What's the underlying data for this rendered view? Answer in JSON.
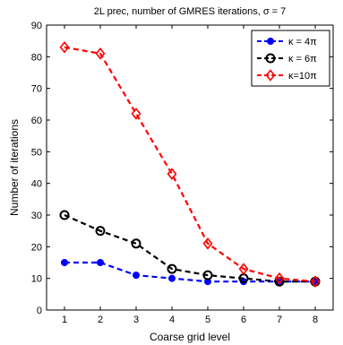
{
  "chart_data": {
    "type": "line",
    "title": "2L prec, number of GMRES iterations, σ = 7",
    "xlabel": "Coarse grid level",
    "ylabel": "Number of iterations",
    "x": [
      1,
      2,
      3,
      4,
      5,
      6,
      7,
      8
    ],
    "xlim": [
      0.5,
      8.5
    ],
    "ylim": [
      0,
      90
    ],
    "xticks": [
      "1",
      "2",
      "3",
      "4",
      "5",
      "6",
      "7",
      "8"
    ],
    "yticks": [
      "0",
      "10",
      "20",
      "30",
      "40",
      "50",
      "60",
      "70",
      "80",
      "90"
    ],
    "grid": false,
    "legend_position": "top-right",
    "series": [
      {
        "name": "κ = 4π",
        "color": "#0000ff",
        "marker": "filled-circle",
        "values": [
          15,
          15,
          11,
          10,
          9,
          9,
          9,
          9
        ]
      },
      {
        "name": "κ = 6π",
        "color": "#000000",
        "marker": "open-circle",
        "values": [
          30,
          25,
          21,
          13,
          11,
          10,
          9,
          9
        ]
      },
      {
        "name": "κ=10π",
        "color": "#ff0000",
        "marker": "diamond",
        "values": [
          83,
          81,
          62,
          43,
          21,
          13,
          10,
          9
        ]
      }
    ]
  }
}
